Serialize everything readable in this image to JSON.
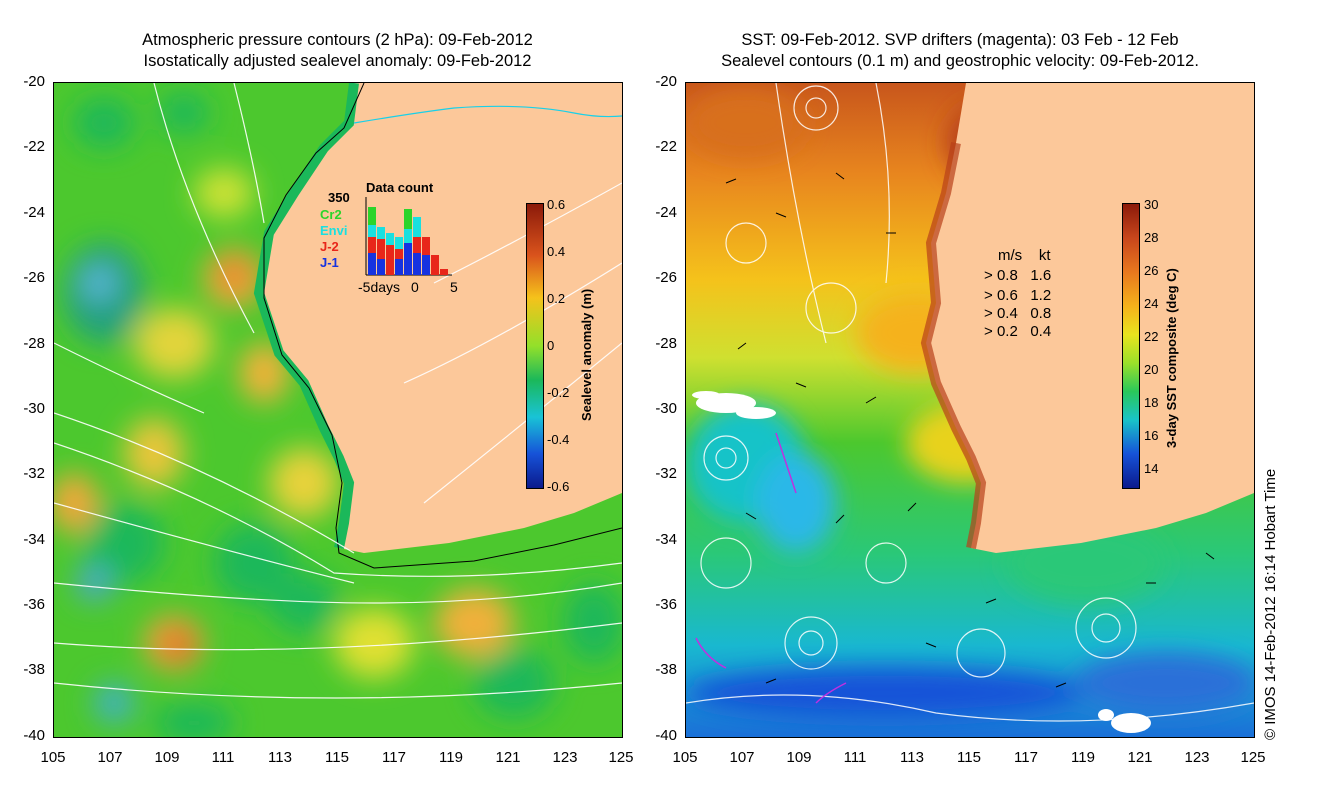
{
  "left_panel": {
    "title_line1": "Atmospheric pressure contours (2 hPa): 09-Feb-2012",
    "title_line2": "Isostatically adjusted sealevel anomaly: 09-Feb-2012",
    "colorbar": {
      "label": "Sealevel anomaly (m)",
      "ticks": [
        "0.6",
        "0.4",
        "0.2",
        "0",
        "-0.2",
        "-0.4",
        "-0.6"
      ],
      "colors": [
        "#8b1a0a",
        "#d9531c",
        "#f5c21b",
        "#93e02a",
        "#1bb85a",
        "#19c3d6",
        "#1652d8",
        "#0b1a8c"
      ]
    },
    "inset": {
      "title": "Data count",
      "ymax_label": "350",
      "missions": [
        {
          "name": "Cr2",
          "color": "#2bd42b"
        },
        {
          "name": "Envi",
          "color": "#19e0e0"
        },
        {
          "name": "J-2",
          "color": "#e8261a"
        },
        {
          "name": "J-1",
          "color": "#1632e0"
        }
      ],
      "x_labels": [
        "-5days",
        "0",
        "5"
      ]
    }
  },
  "right_panel": {
    "title_line1": "SST: 09-Feb-2012. SVP drifters (magenta): 03 Feb - 12 Feb",
    "title_line2": "Sealevel contours (0.1 m) and geostrophic velocity: 09-Feb-2012.",
    "colorbar": {
      "label": "3-day SST composite (deg C)",
      "ticks": [
        "30",
        "28",
        "26",
        "24",
        "22",
        "20",
        "18",
        "16",
        "14"
      ],
      "colors": [
        "#8b1a0a",
        "#c8461c",
        "#e8781e",
        "#f5b21b",
        "#e8e41e",
        "#9be02a",
        "#2ac85a",
        "#19c3c8",
        "#1652d8",
        "#0b1a8c"
      ]
    },
    "velocity_legend": {
      "header_ms": "m/s",
      "header_kt": "kt",
      "rows": [
        {
          "ms": "0.8",
          "kt": "1.6"
        },
        {
          "ms": "0.6",
          "kt": "1.2"
        },
        {
          "ms": "0.4",
          "kt": "0.8"
        },
        {
          "ms": "0.2",
          "kt": "0.4"
        }
      ]
    }
  },
  "axes": {
    "lat_labels": [
      "-20",
      "-22",
      "-24",
      "-26",
      "-28",
      "-30",
      "-32",
      "-34",
      "-36",
      "-38",
      "-40"
    ],
    "lon_labels": [
      "105",
      "107",
      "109",
      "111",
      "113",
      "115",
      "117",
      "119",
      "121",
      "123",
      "125"
    ]
  },
  "credit": "© IMOS 14-Feb-2012 16:14 Hobart Time",
  "colors": {
    "land": "#fcc89a",
    "contour": "#ffffff"
  }
}
